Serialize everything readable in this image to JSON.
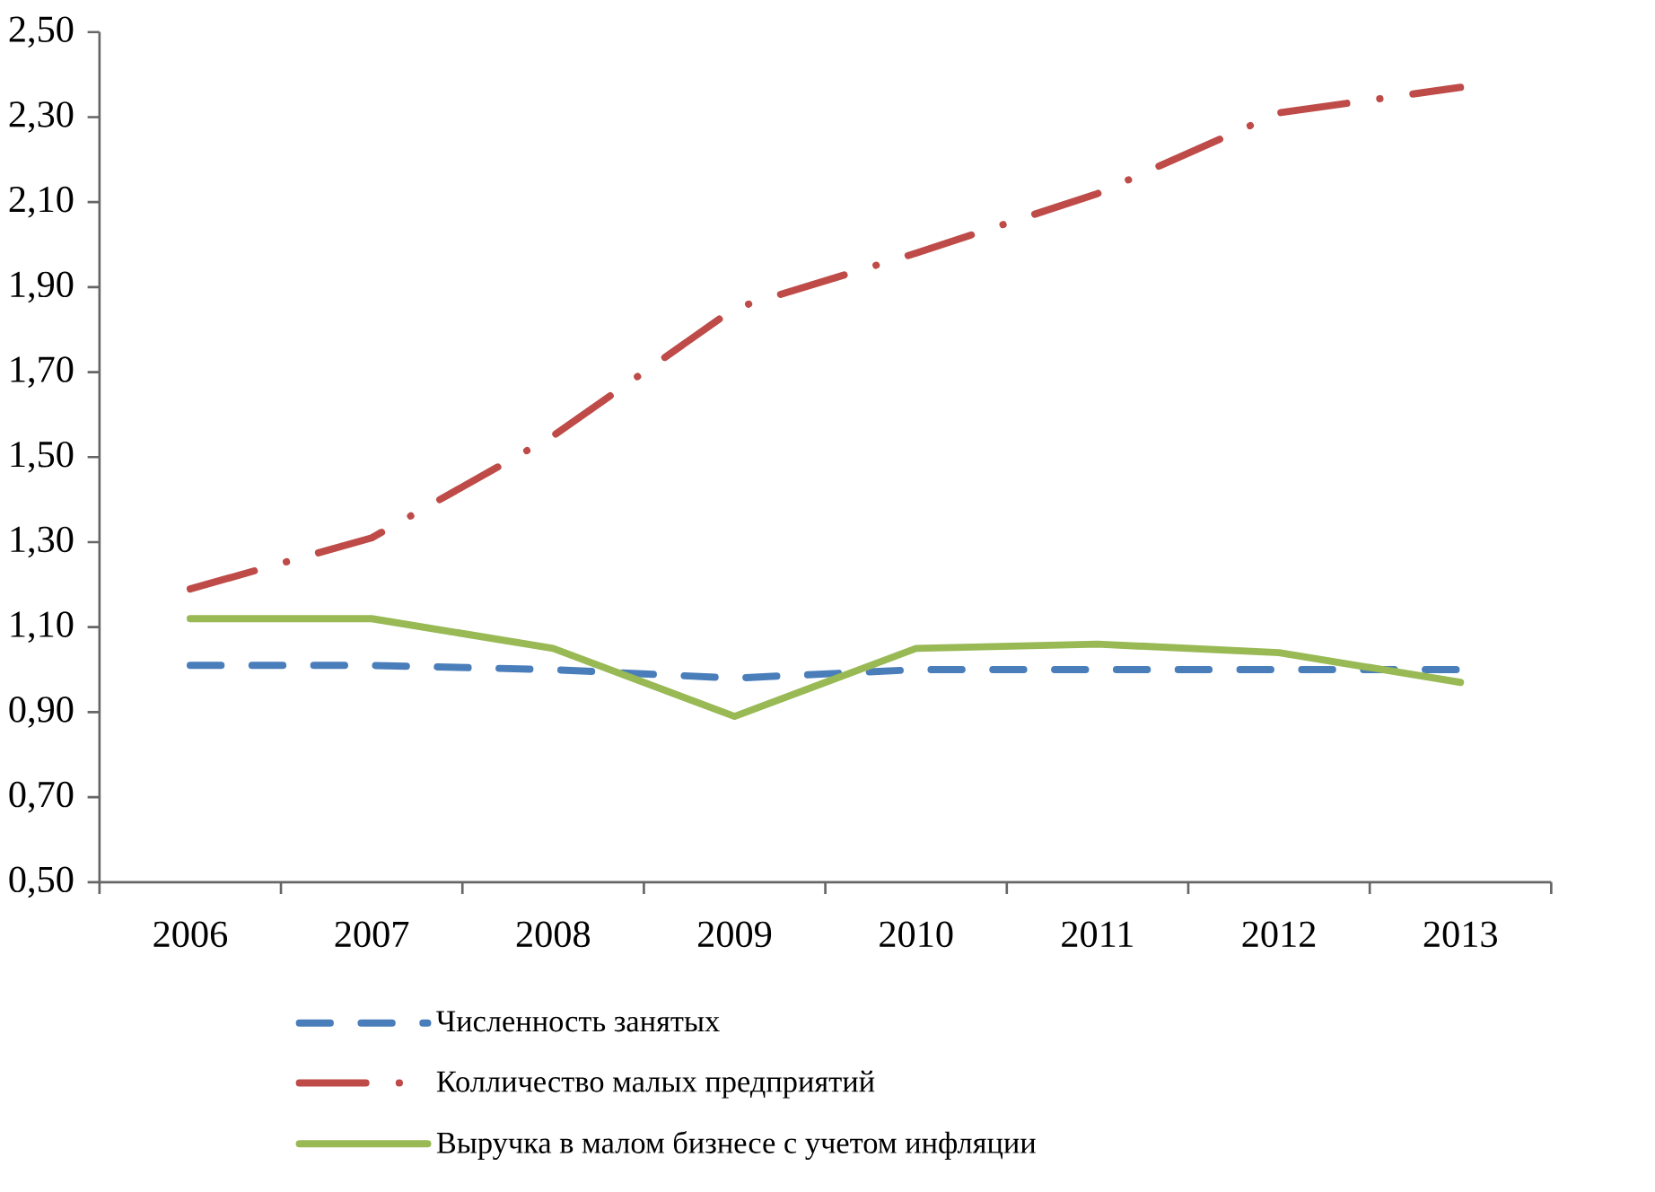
{
  "chart_data": {
    "type": "line",
    "categories": [
      "2006",
      "2007",
      "2008",
      "2009",
      "2010",
      "2011",
      "2012",
      "2013"
    ],
    "series": [
      {
        "name": "Численность занятых",
        "color": "#4a7ebb",
        "line_style": "dashed",
        "values": [
          1.01,
          1.01,
          1.0,
          0.98,
          1.0,
          1.0,
          1.0,
          1.0
        ]
      },
      {
        "name": "Колличество малых предприятий",
        "color": "#be4b48",
        "line_style": "dashdot",
        "values": [
          1.19,
          1.31,
          1.55,
          1.85,
          1.98,
          2.12,
          2.31,
          2.37
        ]
      },
      {
        "name": "Выручка в малом бизнесе с учетом инфляции",
        "color": "#98b954",
        "line_style": "solid",
        "values": [
          1.12,
          1.12,
          1.05,
          0.89,
          1.05,
          1.06,
          1.04,
          0.97
        ]
      }
    ],
    "ylim": [
      0.5,
      2.5
    ],
    "yticks": [
      {
        "value": 0.5,
        "label": "0,50"
      },
      {
        "value": 0.7,
        "label": "0,70"
      },
      {
        "value": 0.9,
        "label": "0,90"
      },
      {
        "value": 1.1,
        "label": "1,10"
      },
      {
        "value": 1.3,
        "label": "1,30"
      },
      {
        "value": 1.5,
        "label": "1,50"
      },
      {
        "value": 1.7,
        "label": "1,70"
      },
      {
        "value": 1.9,
        "label": "1,90"
      },
      {
        "value": 2.1,
        "label": "2,10"
      },
      {
        "value": 2.3,
        "label": "2,30"
      },
      {
        "value": 2.5,
        "label": "2,50"
      }
    ],
    "grid": false,
    "legend": "bottom",
    "marker": "none"
  }
}
